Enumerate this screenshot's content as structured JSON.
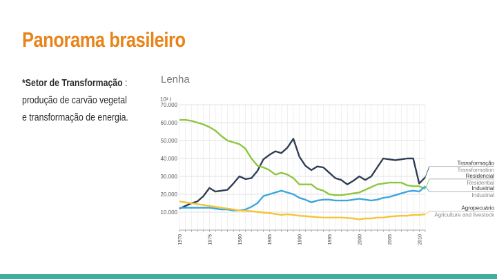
{
  "slide": {
    "title": "Panorama brasileiro",
    "bullet_bold": "*Setor de Transformação",
    "bullet_rest_1": " :",
    "bullet_line2": "produção de carvão vegetal",
    "bullet_line3": "e transformação de energia."
  },
  "colors": {
    "title": "#e8841a",
    "bottom_bar": "#3fae9f"
  },
  "chart_data": {
    "type": "line",
    "title": "Lenha",
    "ylabel": "10³ t",
    "ylim": [
      0,
      70000
    ],
    "y_ticks": [
      "10.000",
      "20.000",
      "30.000",
      "40.000",
      "50.000",
      "60.000",
      "70.000"
    ],
    "y_tick_values": [
      10000,
      20000,
      30000,
      40000,
      50000,
      60000,
      70000
    ],
    "xlim": [
      1970,
      2011
    ],
    "x_ticks": [
      "1970",
      "1975",
      "1980",
      "1985",
      "1990",
      "1995",
      "2000",
      "2005",
      "2010"
    ],
    "x_tick_values": [
      1970,
      1975,
      1980,
      1985,
      1990,
      1995,
      2000,
      2005,
      2010
    ],
    "grid": true,
    "legend_placement": "right",
    "series": [
      {
        "name": "Transformação",
        "name_en": "Transformation",
        "color": "#2f3e55",
        "x": [
          1970,
          1971,
          1972,
          1973,
          1974,
          1975,
          1976,
          1977,
          1978,
          1979,
          1980,
          1981,
          1982,
          1983,
          1984,
          1985,
          1986,
          1987,
          1988,
          1989,
          1990,
          1991,
          1992,
          1993,
          1994,
          1995,
          1996,
          1997,
          1998,
          1999,
          2000,
          2001,
          2002,
          2003,
          2004,
          2005,
          2006,
          2007,
          2008,
          2009,
          2010,
          2011
        ],
        "values": [
          12000,
          13500,
          15000,
          16000,
          19000,
          23500,
          21500,
          22000,
          22500,
          26000,
          30000,
          28500,
          29000,
          33000,
          39500,
          42000,
          44000,
          43000,
          46000,
          51000,
          41000,
          36000,
          33500,
          35500,
          35000,
          32000,
          29000,
          28000,
          25500,
          27500,
          30000,
          28000,
          30000,
          35000,
          40000,
          39500,
          39000,
          39500,
          40000,
          40000,
          26000,
          29500
        ]
      },
      {
        "name": "Residencial",
        "name_en": "Residential",
        "color": "#8dc63f",
        "x": [
          1970,
          1971,
          1972,
          1973,
          1974,
          1975,
          1976,
          1977,
          1978,
          1979,
          1980,
          1981,
          1982,
          1983,
          1984,
          1985,
          1986,
          1987,
          1988,
          1989,
          1990,
          1991,
          1992,
          1993,
          1994,
          1995,
          1996,
          1997,
          1998,
          1999,
          2000,
          2001,
          2002,
          2003,
          2004,
          2005,
          2006,
          2007,
          2008,
          2009,
          2010,
          2011
        ],
        "values": [
          61500,
          61500,
          61000,
          60000,
          59000,
          57500,
          55500,
          52500,
          50000,
          49000,
          48000,
          45500,
          40000,
          36000,
          35000,
          33500,
          31000,
          32000,
          31000,
          29000,
          25500,
          25500,
          25500,
          23000,
          22000,
          20000,
          19500,
          19500,
          20000,
          20500,
          21000,
          22500,
          24000,
          25500,
          26000,
          26500,
          26500,
          26500,
          25000,
          24500,
          24500,
          23000
        ]
      },
      {
        "name": "Industrial",
        "name_en": "Industrial",
        "color": "#3aa7dc",
        "x": [
          1970,
          1971,
          1972,
          1973,
          1974,
          1975,
          1976,
          1977,
          1978,
          1979,
          1980,
          1981,
          1982,
          1983,
          1984,
          1985,
          1986,
          1987,
          1988,
          1989,
          1990,
          1991,
          1992,
          1993,
          1994,
          1995,
          1996,
          1997,
          1998,
          1999,
          2000,
          2001,
          2002,
          2003,
          2004,
          2005,
          2006,
          2007,
          2008,
          2009,
          2010,
          2011
        ],
        "values": [
          12500,
          12500,
          12500,
          12500,
          12500,
          12500,
          12000,
          11500,
          11500,
          11000,
          11000,
          11500,
          13000,
          15000,
          19000,
          20000,
          21000,
          22000,
          21000,
          20000,
          18000,
          17000,
          15500,
          16500,
          17000,
          17000,
          16500,
          16500,
          16500,
          17000,
          17500,
          17000,
          16500,
          17000,
          18000,
          18500,
          19500,
          20500,
          21500,
          22000,
          21500,
          24500
        ]
      },
      {
        "name": "Agropecuário",
        "name_en": "Agriculture and livestock",
        "color": "#f5c335",
        "x": [
          1970,
          1971,
          1972,
          1973,
          1974,
          1975,
          1976,
          1977,
          1978,
          1979,
          1980,
          1981,
          1982,
          1983,
          1984,
          1985,
          1986,
          1987,
          1988,
          1989,
          1990,
          1991,
          1992,
          1993,
          1994,
          1995,
          1996,
          1997,
          1998,
          1999,
          2000,
          2001,
          2002,
          2003,
          2004,
          2005,
          2006,
          2007,
          2008,
          2009,
          2010,
          2011
        ],
        "values": [
          16000,
          15500,
          15000,
          14500,
          14000,
          13500,
          13000,
          12500,
          12000,
          11500,
          11000,
          10800,
          10500,
          10200,
          9800,
          9500,
          9000,
          8500,
          8800,
          8500,
          8000,
          7800,
          7500,
          7200,
          7000,
          7000,
          7000,
          7000,
          6800,
          6500,
          6000,
          6500,
          6500,
          7000,
          7000,
          7500,
          7800,
          8000,
          8000,
          8500,
          8500,
          8800
        ]
      }
    ]
  }
}
